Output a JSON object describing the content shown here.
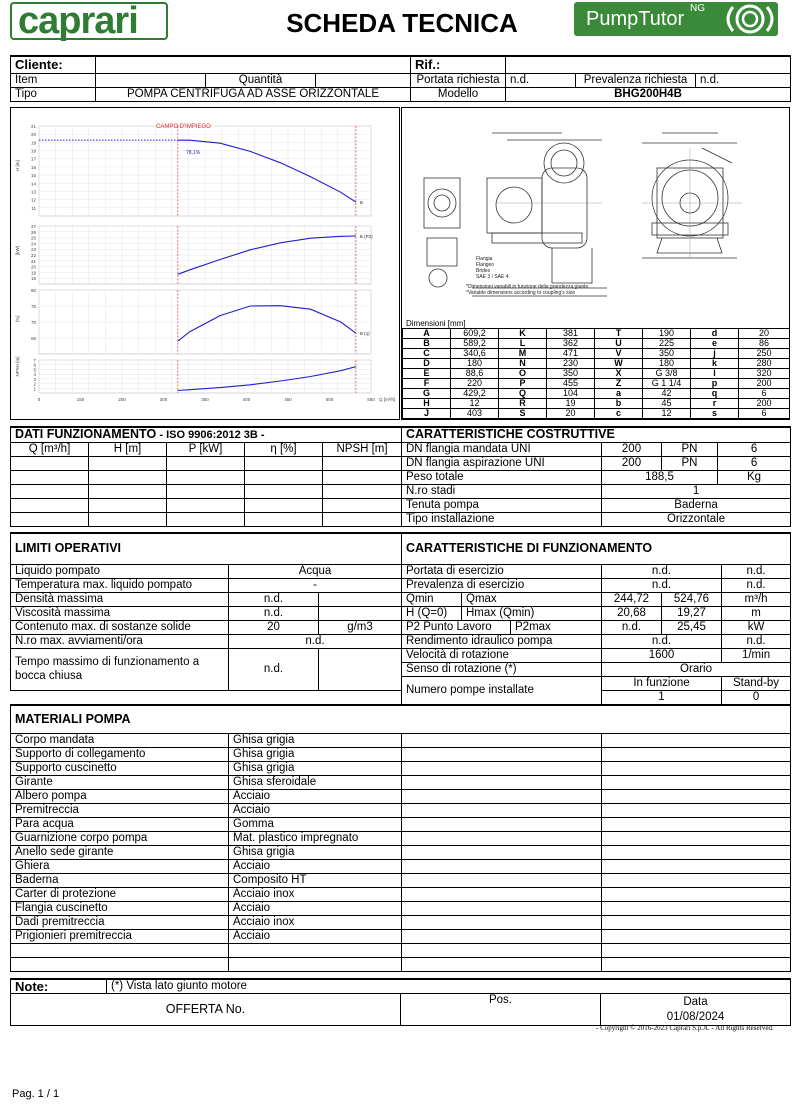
{
  "header": {
    "logo": "caprari",
    "title": "SCHEDA TECNICA",
    "logo2": "PumpTutor",
    "logo2_sup": "NG"
  },
  "info": {
    "cliente_label": "Cliente:",
    "rif_label": "Rif.:",
    "item_label": "Item",
    "quantita_label": "Quantità",
    "portata_label": "Portata richiesta",
    "portata_val": "n.d.",
    "prevalenza_label": "Prevalenza richiesta",
    "prevalenza_val": "n.d.",
    "tipo_label": "Tipo",
    "tipo_val": "POMPA CENTRIFUGA AD ASSE ORIZZONTALE",
    "modello_label": "Modello",
    "modello_val": "BHG200H4B"
  },
  "chart_data": [
    {
      "type": "line",
      "ylabel": "H [m]",
      "title": "CAMPO D'IMPIEGO",
      "annotation": "78,1%",
      "ylim": [
        10,
        21
      ],
      "x": [
        230,
        250,
        300,
        350,
        400,
        450,
        500,
        525
      ],
      "series": [
        {
          "values": [
            19.27,
            19.27,
            18.9,
            17.9,
            16.5,
            14.8,
            12.9,
            11.7
          ]
        }
      ],
      "yticks": [
        "21",
        "20",
        "19",
        "18",
        "17",
        "16",
        "15",
        "14",
        "13",
        "12",
        "11"
      ],
      "end_label": "B"
    },
    {
      "type": "line",
      "ylabel": "[kW]",
      "ylim": [
        18,
        27
      ],
      "x": [
        230,
        250,
        300,
        350,
        400,
        450,
        500,
        525
      ],
      "series": [
        {
          "values": [
            19.5,
            20.2,
            21.8,
            23.3,
            24.4,
            25.1,
            25.4,
            25.45
          ]
        }
      ],
      "yticks": [
        "27",
        "26",
        "25",
        "24",
        "23",
        "22",
        "21",
        "20",
        "19",
        "18"
      ],
      "end_label": "B (P2)"
    },
    {
      "type": "line",
      "ylabel": "[%]",
      "ylim": [
        63,
        83
      ],
      "x": [
        230,
        250,
        300,
        350,
        400,
        450,
        500,
        525
      ],
      "series": [
        {
          "values": [
            67,
            70,
            75,
            78,
            78.1,
            77,
            73,
            69.5
          ]
        }
      ],
      "yticks": [
        "80",
        "75",
        "70",
        "65"
      ],
      "end_label": "B (η)"
    },
    {
      "type": "line",
      "ylabel": "NPSH [m]",
      "ylim": [
        0,
        8
      ],
      "x": [
        230,
        250,
        300,
        350,
        400,
        450,
        500,
        525
      ],
      "series": [
        {
          "values": [
            0.6,
            0.8,
            1.3,
            2,
            2.9,
            4,
            5.4,
            6.4
          ]
        }
      ],
      "yticks": [
        "7",
        "6",
        "5",
        "4",
        "3",
        "2",
        "1"
      ],
      "xticks": [
        "0",
        "150",
        "250",
        "300",
        "350",
        "400",
        "450",
        "500",
        "550"
      ],
      "xlabel": "Q [m³/h]"
    }
  ],
  "drawing": {
    "notes": [
      "*Dimensioni variabili in funzione della grandezza giunto",
      "*Variable dimensions according to coupling's size"
    ],
    "flange": [
      "Flangia",
      "Flangeo",
      "Brides",
      "SAE 3 / SAE 4"
    ]
  },
  "dimensions": {
    "title": "Dimensioni [mm]",
    "rows": [
      [
        "A",
        "609,2",
        "K",
        "381",
        "T",
        "190",
        "d",
        "20"
      ],
      [
        "B",
        "589,2",
        "L",
        "362",
        "U",
        "225",
        "e",
        "86"
      ],
      [
        "C",
        "340,6",
        "M",
        "471",
        "V",
        "350",
        "j",
        "250"
      ],
      [
        "D",
        "180",
        "N",
        "230",
        "W",
        "180",
        "k",
        "280"
      ],
      [
        "E",
        "88,6",
        "O",
        "350",
        "X",
        "G 3/8",
        "l",
        "320"
      ],
      [
        "F",
        "220",
        "P",
        "455",
        "Z",
        "G 1 1/4",
        "p",
        "200"
      ],
      [
        "G",
        "429,2",
        "Q",
        "104",
        "a",
        "42",
        "q",
        "6"
      ],
      [
        "H",
        "12",
        "R",
        "19",
        "b",
        "45",
        "r",
        "200"
      ],
      [
        "J",
        "403",
        "S",
        "20",
        "c",
        "12",
        "s",
        "6"
      ]
    ]
  },
  "dati": {
    "title": "DATI FUNZIONAMENTO",
    "subtitle": "- ISO 9906:2012 3B -",
    "cols": [
      "Q [m³/h]",
      "H [m]",
      "P [kW]",
      "η [%]",
      "NPSH [m]"
    ]
  },
  "costr": {
    "title": "CARATTERISTICHE COSTRUTTIVE",
    "dn_mandata": "DN flangia mandata UNI",
    "dn_mand_val": "200",
    "pn1": "PN",
    "pn1_val": "6",
    "dn_aspir": "DN flangia aspirazione UNI",
    "dn_asp_val": "200",
    "pn2": "PN",
    "pn2_val": "6",
    "peso": "Peso totale",
    "peso_val": "188,5",
    "peso_unit": "Kg",
    "stadi": "N.ro stadi",
    "stadi_val": "1",
    "tenuta": "Tenuta pompa",
    "tenuta_val": "Baderna",
    "install": "Tipo installazione",
    "install_val": "Orizzontale"
  },
  "limiti": {
    "title": "LIMITI OPERATIVI",
    "rows": [
      {
        "label": "Liquido pompato",
        "val": "Acqua",
        "unit": ""
      },
      {
        "label": "Temperatura max. liquido pompato",
        "val": "-",
        "unit": ""
      },
      {
        "label": "Densità massima",
        "val": "n.d.",
        "unit": ""
      },
      {
        "label": "Viscosità massima",
        "val": "n.d.",
        "unit": ""
      },
      {
        "label": "Contenuto max. di sostanze solide",
        "val": "20",
        "unit": "g/m3"
      },
      {
        "label": "N.ro max. avviamenti/ora",
        "val": "n.d.",
        "unit": ""
      }
    ],
    "tempo_label": "Tempo massimo di funzionamento a bocca chiusa",
    "tempo_val": "n.d."
  },
  "funz": {
    "title": "CARATTERISTICHE DI FUNZIONAMENTO",
    "portata": "Portata di esercizio",
    "portata_v": "n.d.",
    "portata_u": "n.d.",
    "prev": "Prevalenza di esercizio",
    "prev_v": "n.d.",
    "prev_u": "n.d.",
    "qmin": "Qmin",
    "qmax": "Qmax",
    "qmin_v": "244,72",
    "qmax_v": "524,76",
    "q_u": "m³/h",
    "h0": "H (Q=0)",
    "hmax": "Hmax (Qmin)",
    "h0_v": "20,68",
    "hmax_v": "19,27",
    "h_u": "m",
    "p2": "P2 Punto Lavoro",
    "p2max": "P2max",
    "p2_v": "n.d.",
    "p2max_v": "25,45",
    "p_u": "kW",
    "rend": "Rendimento idraulico pompa",
    "rend_v": "n.d.",
    "rend_u": "n.d.",
    "vel": "Velocità di rotazione",
    "vel_v": "1600",
    "vel_u": "1/min",
    "senso": "Senso di rotazione (*)",
    "senso_v": "Orario",
    "num": "Numero pompe installate",
    "infunz": "In funzione",
    "standby": "Stand-by",
    "infunz_v": "1",
    "standby_v": "0"
  },
  "materiali": {
    "title": "MATERIALI POMPA",
    "rows": [
      [
        "Corpo mandata",
        "Ghisa grigia"
      ],
      [
        "Supporto di collegamento",
        "Ghisa grigia"
      ],
      [
        "Supporto cuscinetto",
        "Ghisa grigia"
      ],
      [
        "Girante",
        "Ghisa sferoidale"
      ],
      [
        "Albero pompa",
        "Acciaio"
      ],
      [
        "Premitreccia",
        "Acciaio"
      ],
      [
        "Para acqua",
        "Gomma"
      ],
      [
        "Guarnizione corpo pompa",
        "Mat. plastico impregnato"
      ],
      [
        "Anello sede girante",
        "Ghisa grigia"
      ],
      [
        "Ghiera",
        "Acciaio"
      ],
      [
        "Baderna",
        "Composito HT"
      ],
      [
        "Carter di protezione",
        "Acciaio inox"
      ],
      [
        "Flangia cuscinetto",
        "Acciaio"
      ],
      [
        "Dadi premitreccia",
        "Acciaio inox"
      ],
      [
        "Prigionieri premitreccia",
        "Acciaio"
      ]
    ]
  },
  "footer": {
    "note_label": "Note:",
    "note_val": "(*) Vista lato giunto motore",
    "offerta": "OFFERTA No.",
    "pos": "Pos.",
    "data_label": "Data",
    "data_val": "01/08/2024",
    "copyright": "-   Copyright © 2016-2023 Caprari S.p.A. - All Rights Reserved.",
    "page": "Pag. 1 / 1"
  },
  "colors": {
    "curve": "#1f1fc8",
    "red": "#e03030",
    "green": "#3a8a3a"
  }
}
